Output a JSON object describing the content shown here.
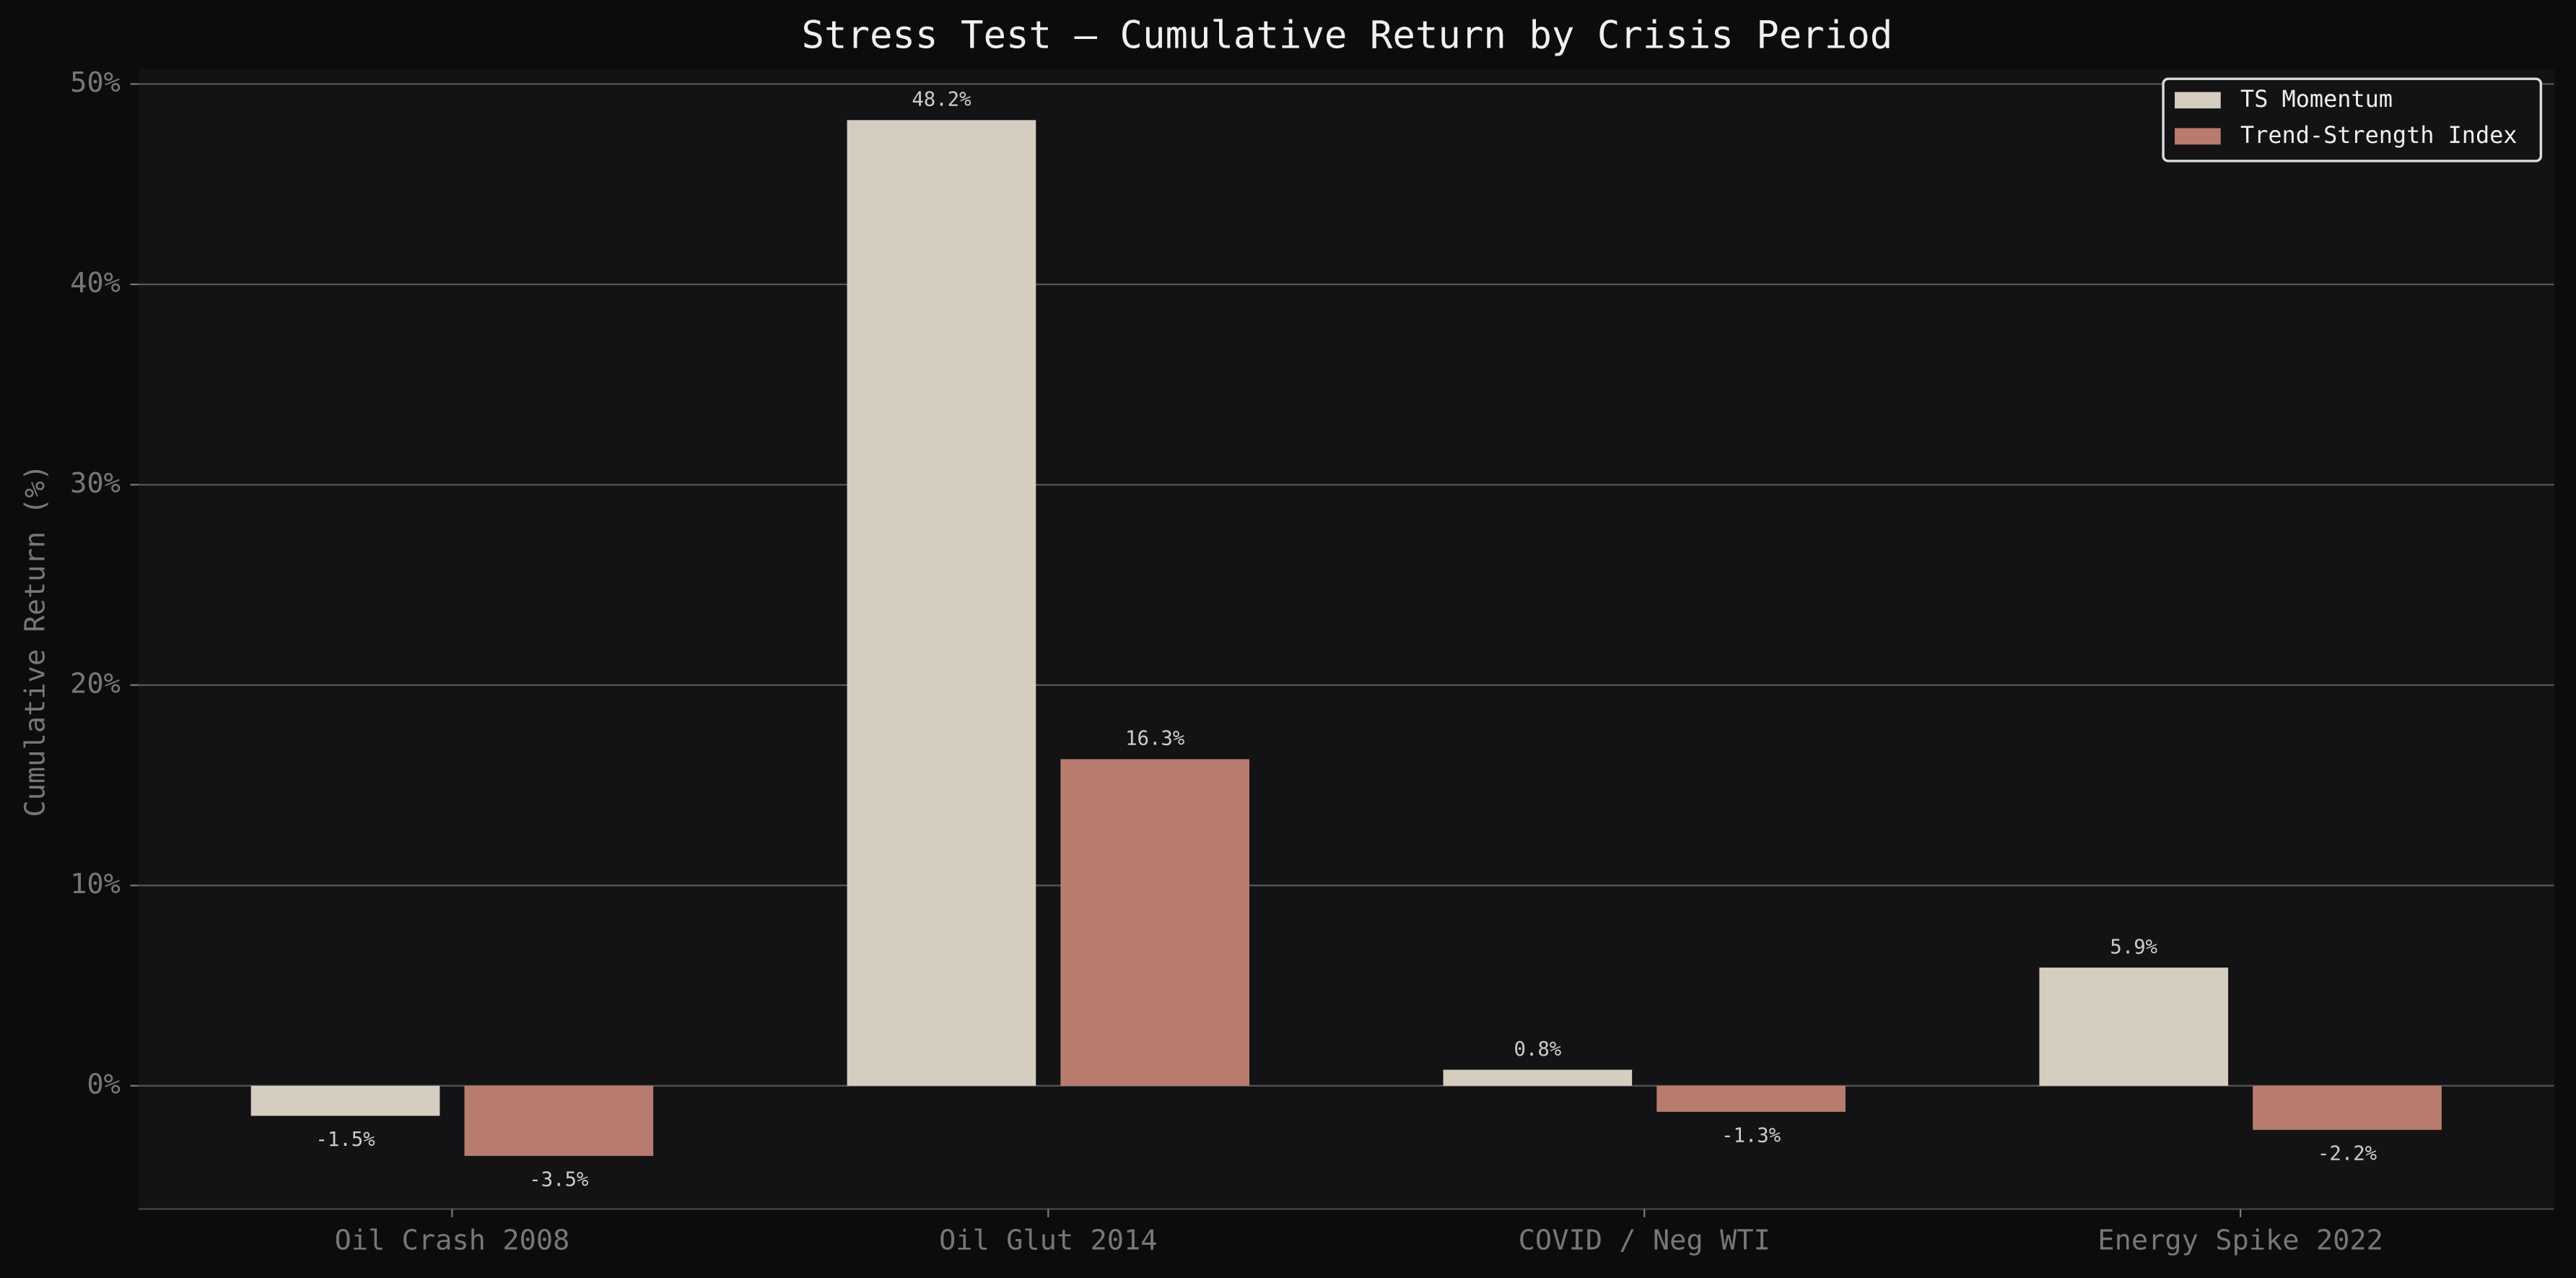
{
  "chart_data": {
    "type": "bar",
    "title": "Stress Test — Cumulative Return by Crisis Period",
    "ylabel": "Cumulative Return (%)",
    "categories": [
      "Oil Crash 2008",
      "Oil Glut 2014",
      "COVID / Neg WTI",
      "Energy Spike 2022"
    ],
    "series": [
      {
        "name": "TS Momentum",
        "color": "#d5cdc0",
        "values": [
          -1.5,
          48.2,
          0.8,
          5.9
        ],
        "value_labels": [
          "-1.5%",
          "48.2%",
          "0.8%",
          "5.9%"
        ]
      },
      {
        "name": "Trend-Strength Index",
        "color": "#b87c6e",
        "values": [
          -3.5,
          16.3,
          -1.3,
          -2.2
        ],
        "value_labels": [
          "-3.5%",
          "16.3%",
          "-1.3%",
          "-2.2%"
        ]
      }
    ],
    "ylim": [
      -6.15,
      50.75
    ],
    "yticks": [
      {
        "value": 0,
        "label": "0%"
      },
      {
        "value": 10,
        "label": "10%"
      },
      {
        "value": 20,
        "label": "20%"
      },
      {
        "value": 30,
        "label": "30%"
      },
      {
        "value": 40,
        "label": "40%"
      },
      {
        "value": 50,
        "label": "50%"
      }
    ],
    "grid": true,
    "legend": "upper-right"
  }
}
